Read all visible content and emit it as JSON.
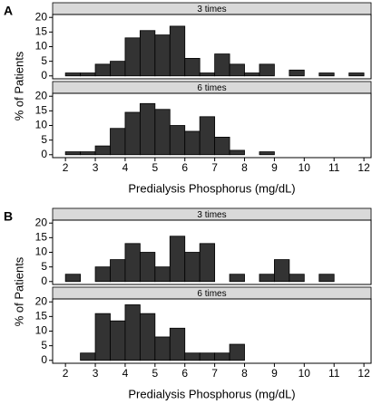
{
  "chart_data": [
    {
      "type": "histogram",
      "label": "A",
      "xlabel": "Predialysis Phosphorus (mg/dL)",
      "ylabel": "% of Patients",
      "bins": [
        2,
        2.5,
        3,
        3.5,
        4,
        4.5,
        5,
        5.5,
        6,
        6.5,
        7,
        7.5,
        8,
        8.5,
        9,
        9.5,
        10,
        10.5,
        11,
        11.5,
        12
      ],
      "xlim": [
        1.57,
        12.24
      ],
      "xticks": [
        2,
        3,
        4,
        5,
        6,
        7,
        8,
        9,
        10,
        11,
        12
      ],
      "ylim": [
        -1,
        21
      ],
      "yticks": [
        0,
        5,
        10,
        15,
        20
      ],
      "color": "#333333",
      "panels": [
        {
          "title": "3 times",
          "values": [
            1,
            1,
            4,
            5,
            13,
            15.5,
            14,
            17,
            6,
            1,
            7.5,
            4,
            1,
            4,
            0,
            2,
            0,
            1,
            0,
            1
          ]
        },
        {
          "title": "6 times",
          "values": [
            1,
            1,
            3,
            9,
            14.5,
            17.5,
            15.5,
            10,
            8,
            13,
            6,
            1.5,
            0,
            1,
            0,
            0,
            0,
            0,
            0,
            0
          ]
        }
      ]
    },
    {
      "type": "histogram",
      "label": "B",
      "xlabel": "Predialysis Phosphorus (mg/dL)",
      "ylabel": "% of Patients",
      "bins": [
        2,
        2.5,
        3,
        3.5,
        4,
        4.5,
        5,
        5.5,
        6,
        6.5,
        7,
        7.5,
        8,
        8.5,
        9,
        9.5,
        10,
        10.5,
        11,
        11.5,
        12
      ],
      "xlim": [
        1.57,
        12.24
      ],
      "xticks": [
        2,
        3,
        4,
        5,
        6,
        7,
        8,
        9,
        10,
        11,
        12
      ],
      "ylim": [
        -1,
        21
      ],
      "yticks": [
        0,
        5,
        10,
        15,
        20
      ],
      "color": "#333333",
      "panels": [
        {
          "title": "3 times",
          "values": [
            2.5,
            0,
            5,
            7.5,
            13,
            10,
            5,
            15.5,
            10,
            13,
            0,
            2.5,
            0,
            2.5,
            7.5,
            2.5,
            0,
            2.5,
            0,
            0
          ]
        },
        {
          "title": "6 times",
          "values": [
            0,
            2.5,
            16,
            13.5,
            19,
            16,
            8,
            11,
            2.5,
            2.5,
            2.5,
            5.5,
            0,
            0,
            0,
            0,
            0,
            0,
            0,
            0
          ]
        }
      ]
    }
  ]
}
